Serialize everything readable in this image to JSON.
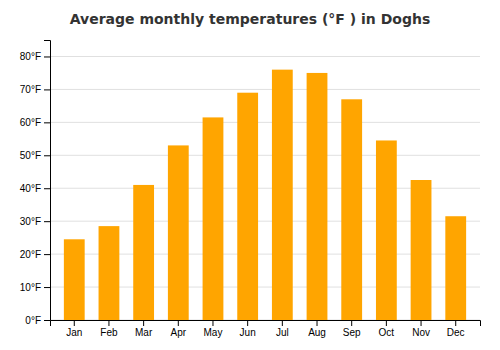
{
  "chart_data": {
    "type": "bar",
    "title": "Average monthly temperatures (°F ) in Doghs",
    "categories": [
      "Jan",
      "Feb",
      "Mar",
      "Apr",
      "May",
      "Jun",
      "Jul",
      "Aug",
      "Sep",
      "Oct",
      "Nov",
      "Dec"
    ],
    "values": [
      24.5,
      28.5,
      41.0,
      53.0,
      61.5,
      69.0,
      76.0,
      75.0,
      67.0,
      54.5,
      42.5,
      31.5
    ],
    "color": "#FFA500",
    "ylim": [
      0,
      85
    ],
    "yticks": [
      {
        "value": 0,
        "label": "0°F"
      },
      {
        "value": 10,
        "label": "10°F"
      },
      {
        "value": 20,
        "label": "20°F"
      },
      {
        "value": 30,
        "label": "30°F"
      },
      {
        "value": 40,
        "label": "40°F"
      },
      {
        "value": 50,
        "label": "50°F"
      },
      {
        "value": 60,
        "label": "60°F"
      },
      {
        "value": 70,
        "label": "70°F"
      },
      {
        "value": 80,
        "label": "80°F"
      }
    ],
    "grid": true
  }
}
